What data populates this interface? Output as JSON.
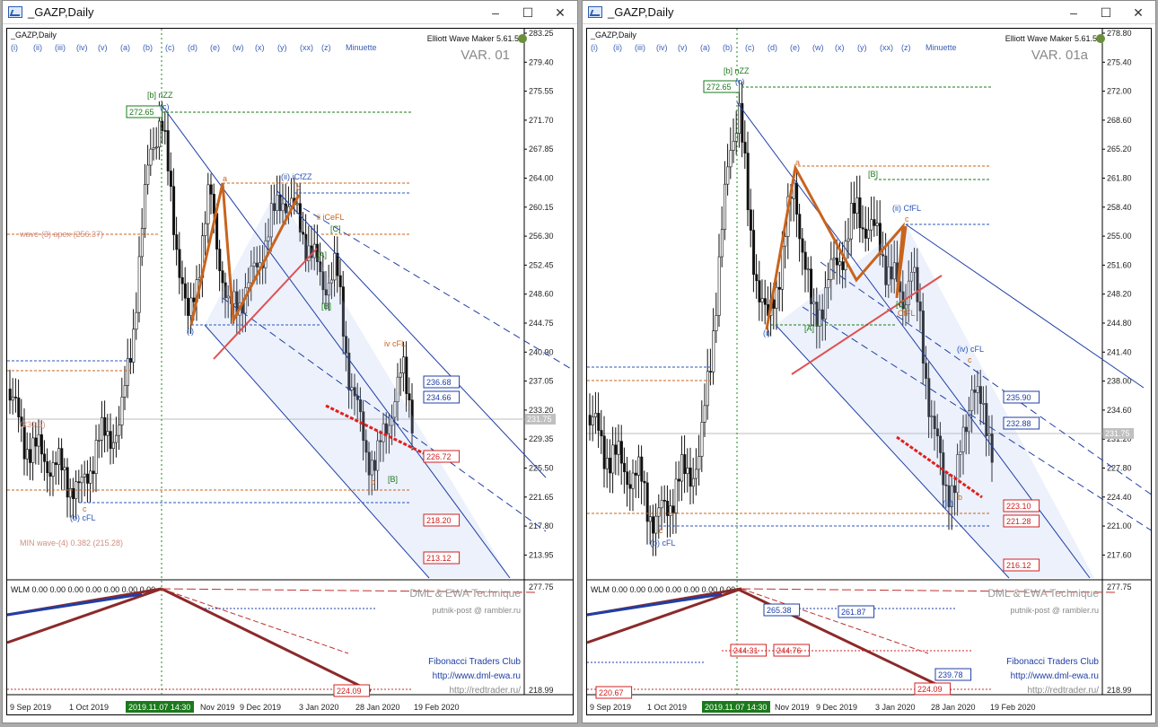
{
  "windows": [
    {
      "id": "left",
      "title": "_GAZP,Daily",
      "symbol_label": "_GAZP,Daily",
      "indicator": "Elliott Wave Maker 5.61.5",
      "variant": "VAR. 01",
      "wave_buttons": [
        "(i)",
        "(ii)",
        "(iii)",
        "(iv)",
        "(v)",
        "(a)",
        "(b)",
        "(c)",
        "(d)",
        "(e)",
        "(w)",
        "(x)",
        "(y)",
        "(xx)",
        "(z)",
        "Minuette"
      ],
      "price_scale": [
        "283.25",
        "279.40",
        "275.55",
        "271.70",
        "267.85",
        "264.00",
        "260.15",
        "256.30",
        "252.45",
        "248.60",
        "244.75",
        "240.90",
        "237.05",
        "233.20",
        "229.35",
        "225.50",
        "221.65",
        "217.80",
        "213.95"
      ],
      "current_price": "231.75",
      "price_tags_blue": [
        "236.68",
        "234.66"
      ],
      "price_tags_red": [
        "226.72",
        "218.20",
        "213.12"
      ],
      "high_tag": "272.65",
      "annotations": {
        "top": "[b] nZZ",
        "top_sub": "(c)",
        "wave_b": "(b) cFL",
        "wave_b_c": "c",
        "ii": "(ii) iCfZZ",
        "ii_c": "c",
        "ii_i": "ii iCeFL",
        "i_label": "(i)",
        "iv": "iv cFL",
        "wave3": "wave-(3) apex (256.37)",
        "min4": "MIN wave-(4) 0.382 (215.28)",
        "left_price": "(230.5)",
        "a": "a",
        "C": "[C]",
        "A": "[A]",
        "B": "[B]",
        "b": "b"
      },
      "subwindow": {
        "label": "WLM 0.00 0.00 0.00 0.00 0.00 0.00 0.00",
        "credit1": "DML & EWA Technique",
        "credit2": "putnik-post @ rambler.ru",
        "credit3": "Fibonacci Traders Club",
        "credit4": "http://www.dml-ewa.ru",
        "credit5": "http://redtrader.ru/",
        "scale": [
          "277.75",
          "218.99"
        ],
        "tag": "224.09"
      },
      "time_axis": [
        "9 Sep 2019",
        "1 Oct 2019",
        "2019.11.07 14:30",
        "Nov 2019",
        "9 Dec 2019",
        "3 Jan 2020",
        "28 Jan 2020",
        "19 Feb 2020"
      ]
    },
    {
      "id": "right",
      "title": "_GAZP,Daily",
      "symbol_label": "_GAZP,Daily",
      "indicator": "Elliott Wave Maker 5.61.5",
      "variant": "VAR. 01a",
      "wave_buttons": [
        "(i)",
        "(ii)",
        "(iii)",
        "(iv)",
        "(v)",
        "(a)",
        "(b)",
        "(c)",
        "(d)",
        "(e)",
        "(w)",
        "(x)",
        "(y)",
        "(xx)",
        "(z)",
        "Minuette"
      ],
      "price_scale": [
        "278.80",
        "275.40",
        "272.00",
        "268.60",
        "265.20",
        "261.80",
        "258.40",
        "255.00",
        "251.60",
        "248.20",
        "244.80",
        "241.40",
        "238.00",
        "234.60",
        "231.20",
        "227.80",
        "224.40",
        "221.00",
        "217.60"
      ],
      "current_price": "231.75",
      "price_tags_blue": [
        "235.90",
        "232.88"
      ],
      "price_tags_red": [
        "223.10",
        "221.28",
        "216.12"
      ],
      "high_tag": "272.65",
      "annotations": {
        "top": "[b] nZZ",
        "top_sub": "(c)",
        "wave_b": "(b) cFL",
        "wave_b_c": "c",
        "ii": "(ii) CfFL",
        "ii_c": "c",
        "ii_i": "CfFL",
        "i_label": "(i)",
        "iv": "(iv) cFL",
        "iii": "(iii)",
        "a": "a",
        "B": "[B]",
        "C": "[C]",
        "iv_sub": "[A]",
        "b": "b",
        "c": "c"
      },
      "subwindow": {
        "label": "WLM 0.00 0.00 0.00 0.00 0.00 0.00 0.00",
        "credit1": "DML & EWA Technique",
        "credit2": "putnik-post @ rambler.ru",
        "credit3": "Fibonacci Traders Club",
        "credit4": "http://www.dml-ewa.ru",
        "credit5": "http://redtrader.ru/",
        "scale": [
          "277.75",
          "218.99"
        ],
        "tags_blue": [
          "265.38",
          "261.87",
          "239.78"
        ],
        "tags_red": [
          "244.31",
          "244.76",
          "220.67",
          "224.09"
        ]
      },
      "time_axis": [
        "9 Sep 2019",
        "1 Oct 2019",
        "2019.11.07 14:30",
        "Nov 2019",
        "9 Dec 2019",
        "3 Jan 2020",
        "28 Jan 2020",
        "19 Feb 2020"
      ]
    }
  ],
  "colors": {
    "bull": "#2a6fdb",
    "bear": "#111111",
    "orange": "#c8641e",
    "red": "#e02020",
    "blue": "#1f3fa6",
    "green_tag": "#1b7a1b"
  }
}
